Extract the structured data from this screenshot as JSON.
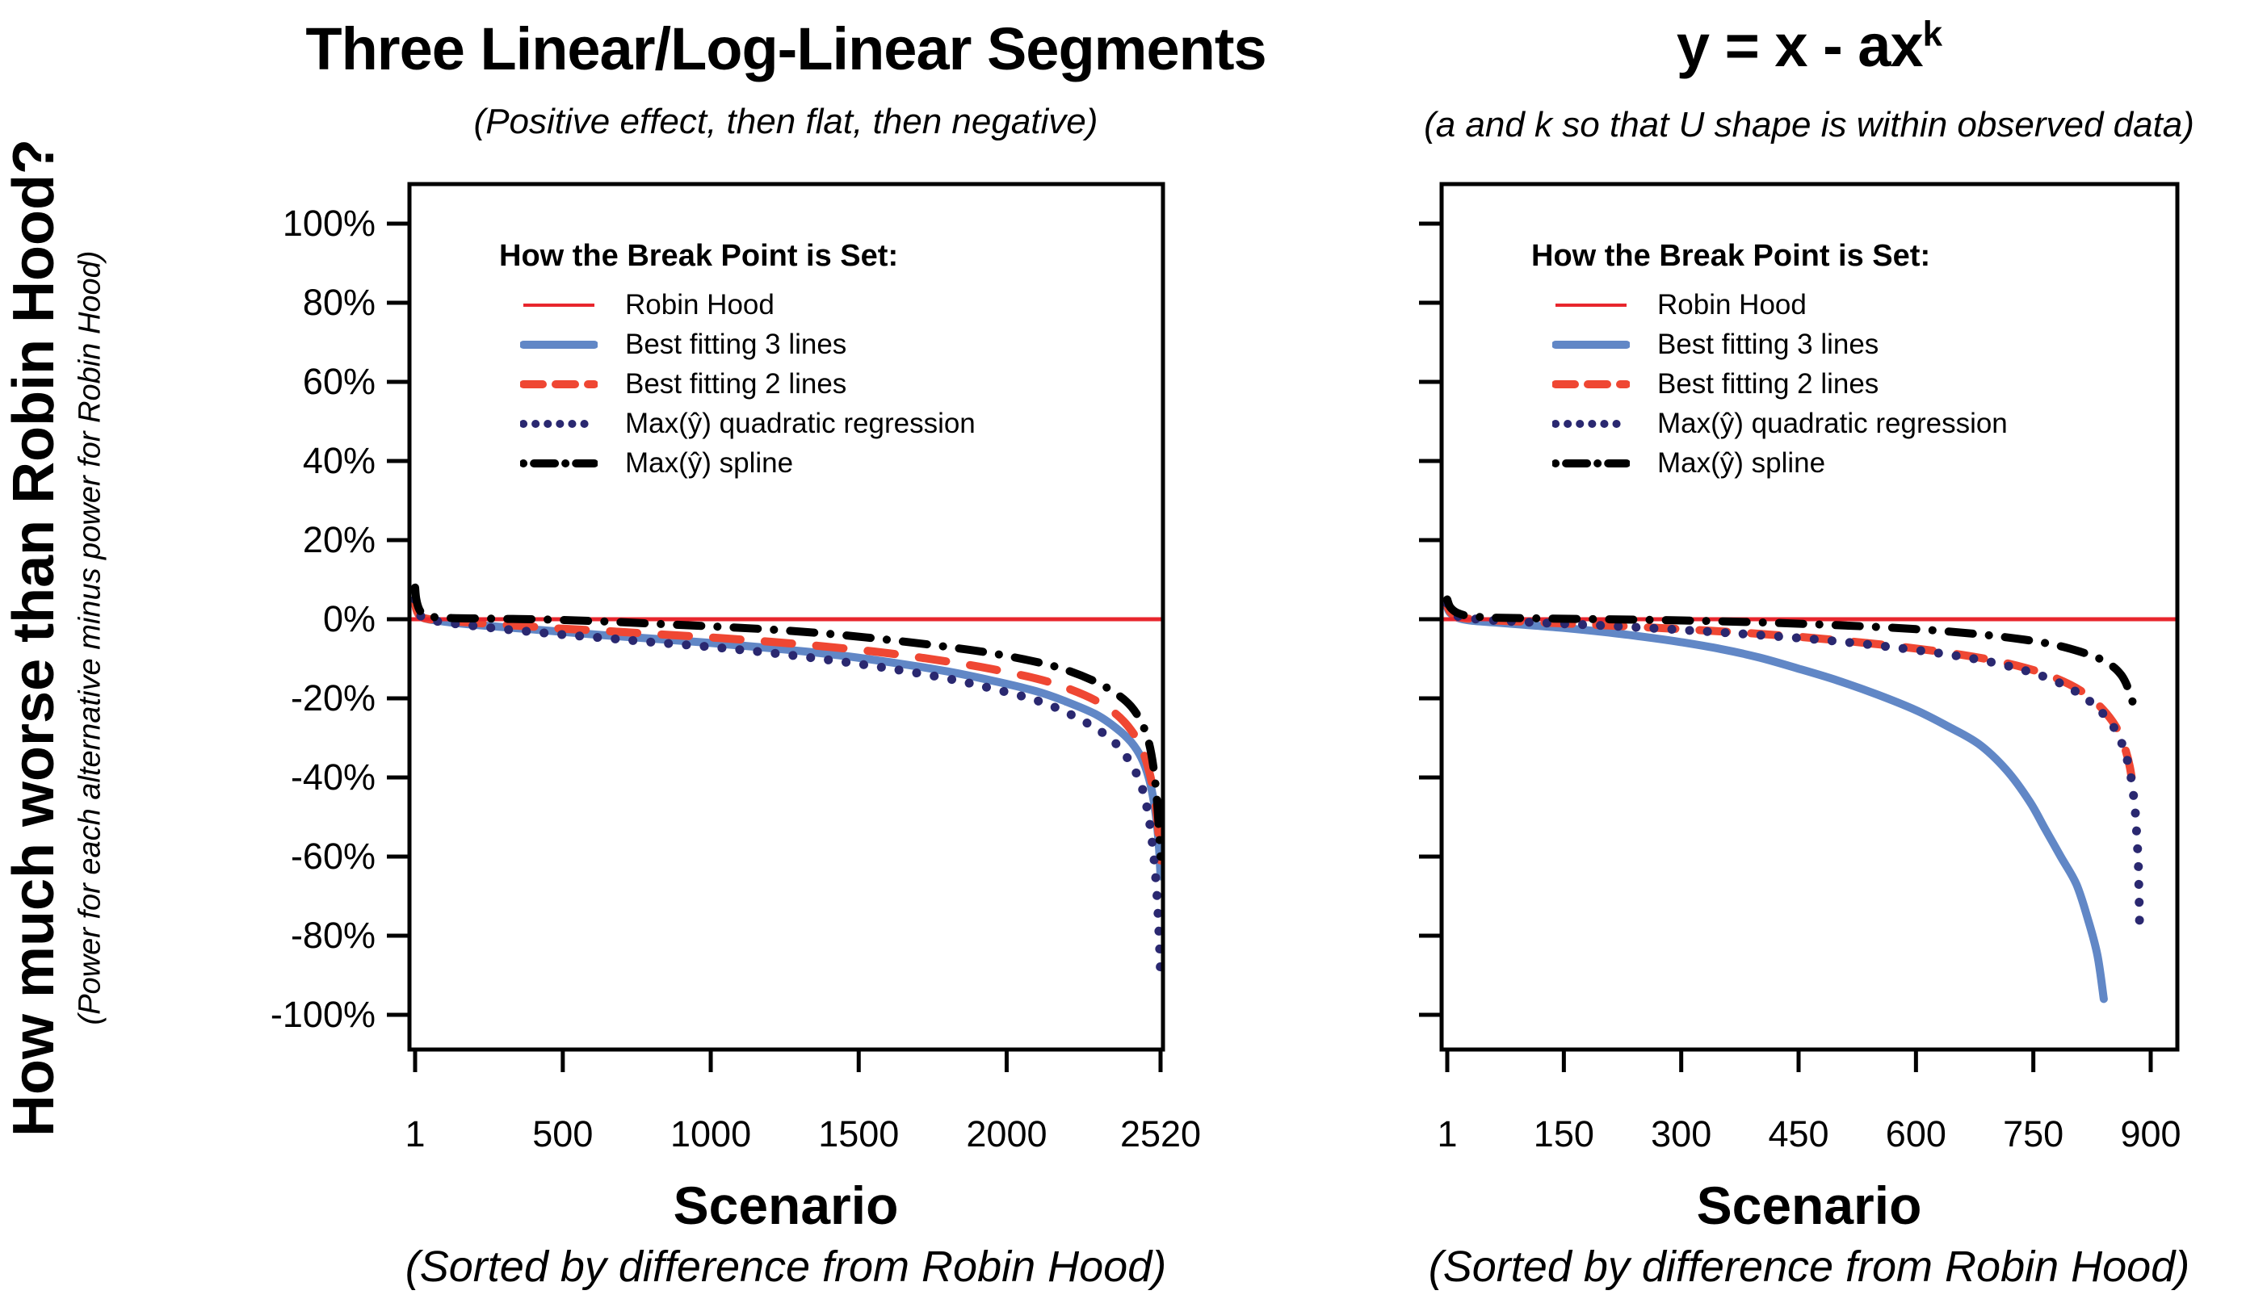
{
  "colors": {
    "robin_red": "#E8262D",
    "blue": "#6187C6",
    "orange": "#EF4733",
    "navy": "#2A2870",
    "black": "#000000",
    "axis": "#000000",
    "background": "#FFFFFF"
  },
  "left_axis": {
    "title": "How much worse than Robin Hood?",
    "subtitle": "(Power for each alternative minus power for Robin Hood)"
  },
  "legend": {
    "title": "How the Break Point is Set:",
    "entries": [
      {
        "label": "Robin Hood",
        "style": "robin"
      },
      {
        "label": "Best fitting 3 lines",
        "style": "blue"
      },
      {
        "label": "Best fitting 2 lines",
        "style": "orange"
      },
      {
        "label": "Max(ŷ) quadratic regression",
        "style": "navy"
      },
      {
        "label": "Max(ŷ) spline",
        "style": "black"
      }
    ]
  },
  "panels": [
    {
      "title": "Three Linear/Log-Linear Segments",
      "title_sup": "",
      "subtitle": "(Positive effect, then flat, then negative)",
      "xlabel": "Scenario",
      "xlabel_note": "(Sorted by difference from Robin Hood)"
    },
    {
      "title": "y = x -  ax",
      "title_sup": "k",
      "subtitle": "(a and k so that U shape is within observed data)",
      "xlabel": "Scenario",
      "xlabel_note": "(Sorted by difference from Robin Hood)"
    }
  ],
  "chart_data": [
    {
      "type": "line",
      "title": "Three Linear/Log-Linear Segments",
      "subtitle": "(Positive effect, then flat, then negative)",
      "xlabel": "Scenario (Sorted by difference from Robin Hood)",
      "ylabel": "Power for each alternative minus power for Robin Hood (%)",
      "x_ticks": [
        1,
        500,
        1000,
        1500,
        2000,
        2520
      ],
      "x_tick_labels": [
        "1",
        "500",
        "1000",
        "1500",
        "2000",
        "2520"
      ],
      "y_ticks": [
        100,
        80,
        60,
        40,
        20,
        0,
        -20,
        -40,
        -60,
        -80,
        -100
      ],
      "y_tick_labels": [
        "100%",
        "80%",
        "60%",
        "40%",
        "20%",
        "0%",
        "-20%",
        "-40%",
        "-60%",
        "-80%",
        "-100%"
      ],
      "ylim": [
        -108,
        110
      ],
      "show_y_tick_labels": true,
      "grid": false,
      "legend_position": "top-left-inside",
      "series": [
        {
          "name": "Robin Hood",
          "style": "robin",
          "reference_line_y": 0,
          "points": []
        },
        {
          "name": "Best fitting 3 lines",
          "style": "blue",
          "points": [
            [
              1,
              4
            ],
            [
              5,
              2.5
            ],
            [
              15,
              1
            ],
            [
              30,
              0.3
            ],
            [
              60,
              -0.2
            ],
            [
              120,
              -0.8
            ],
            [
              200,
              -1.4
            ],
            [
              300,
              -2
            ],
            [
              400,
              -2.6
            ],
            [
              500,
              -3.2
            ],
            [
              650,
              -4.1
            ],
            [
              800,
              -4.9
            ],
            [
              1000,
              -6
            ],
            [
              1200,
              -7.3
            ],
            [
              1400,
              -8.8
            ],
            [
              1600,
              -10.8
            ],
            [
              1800,
              -13.2
            ],
            [
              1950,
              -15.5
            ],
            [
              2100,
              -18.2
            ],
            [
              2200,
              -20.8
            ],
            [
              2300,
              -24
            ],
            [
              2370,
              -27.5
            ],
            [
              2420,
              -31
            ],
            [
              2455,
              -35
            ],
            [
              2480,
              -40
            ],
            [
              2497,
              -46
            ],
            [
              2508,
              -52
            ],
            [
              2515,
              -58
            ],
            [
              2520,
              -65
            ]
          ]
        },
        {
          "name": "Best fitting 2 lines",
          "style": "orange",
          "points": [
            [
              1,
              4.5
            ],
            [
              5,
              2.5
            ],
            [
              15,
              1
            ],
            [
              30,
              0.3
            ],
            [
              60,
              -0.1
            ],
            [
              120,
              -0.5
            ],
            [
              200,
              -0.9
            ],
            [
              300,
              -1.4
            ],
            [
              400,
              -1.9
            ],
            [
              500,
              -2.4
            ],
            [
              650,
              -3
            ],
            [
              800,
              -3.7
            ],
            [
              1000,
              -4.6
            ],
            [
              1200,
              -5.7
            ],
            [
              1400,
              -7
            ],
            [
              1600,
              -8.6
            ],
            [
              1800,
              -10.7
            ],
            [
              1950,
              -12.6
            ],
            [
              2100,
              -15
            ],
            [
              2200,
              -17.3
            ],
            [
              2300,
              -20.5
            ],
            [
              2370,
              -24
            ],
            [
              2420,
              -28
            ],
            [
              2455,
              -32.5
            ],
            [
              2480,
              -38
            ],
            [
              2497,
              -44
            ],
            [
              2508,
              -50
            ],
            [
              2515,
              -56
            ],
            [
              2520,
              -61
            ]
          ]
        },
        {
          "name": "Max(ŷ) quadratic regression",
          "style": "navy",
          "points": [
            [
              1,
              5
            ],
            [
              5,
              3
            ],
            [
              15,
              1.2
            ],
            [
              30,
              0.4
            ],
            [
              60,
              -0.3
            ],
            [
              120,
              -1
            ],
            [
              200,
              -1.7
            ],
            [
              300,
              -2.5
            ],
            [
              400,
              -3.2
            ],
            [
              500,
              -3.9
            ],
            [
              650,
              -4.8
            ],
            [
              800,
              -5.8
            ],
            [
              1000,
              -7
            ],
            [
              1200,
              -8.5
            ],
            [
              1400,
              -10.3
            ],
            [
              1600,
              -12.4
            ],
            [
              1800,
              -15
            ],
            [
              1950,
              -17.5
            ],
            [
              2100,
              -20.5
            ],
            [
              2200,
              -23.5
            ],
            [
              2300,
              -27.5
            ],
            [
              2370,
              -31.5
            ],
            [
              2420,
              -36.5
            ],
            [
              2455,
              -42
            ],
            [
              2480,
              -50
            ],
            [
              2497,
              -60
            ],
            [
              2508,
              -70
            ],
            [
              2515,
              -80
            ],
            [
              2520,
              -90
            ]
          ]
        },
        {
          "name": "Max(ŷ) spline",
          "style": "black",
          "points": [
            [
              1,
              8
            ],
            [
              5,
              5
            ],
            [
              15,
              2.5
            ],
            [
              30,
              1.2
            ],
            [
              60,
              0.6
            ],
            [
              120,
              0.3
            ],
            [
              200,
              0.2
            ],
            [
              300,
              0.1
            ],
            [
              400,
              0
            ],
            [
              500,
              -0.2
            ],
            [
              650,
              -0.6
            ],
            [
              800,
              -1.1
            ],
            [
              1000,
              -1.8
            ],
            [
              1200,
              -2.6
            ],
            [
              1400,
              -3.7
            ],
            [
              1600,
              -5.2
            ],
            [
              1800,
              -7
            ],
            [
              1950,
              -8.6
            ],
            [
              2100,
              -10.8
            ],
            [
              2200,
              -12.8
            ],
            [
              2300,
              -15.8
            ],
            [
              2370,
              -18.8
            ],
            [
              2420,
              -22
            ],
            [
              2455,
              -26
            ],
            [
              2480,
              -31
            ],
            [
              2497,
              -38
            ],
            [
              2508,
              -46
            ],
            [
              2515,
              -54
            ],
            [
              2520,
              -60
            ]
          ]
        }
      ]
    },
    {
      "type": "line",
      "title": "y = x - ax^k",
      "subtitle": "(a and k so that U shape is within observed data)",
      "xlabel": "Scenario (Sorted by difference from Robin Hood)",
      "ylabel": "Power for each alternative minus power for Robin Hood (%)",
      "x_ticks": [
        1,
        150,
        300,
        450,
        600,
        750,
        900
      ],
      "x_tick_labels": [
        "1",
        "150",
        "300",
        "450",
        "600",
        "750",
        "900"
      ],
      "y_ticks": [
        100,
        80,
        60,
        40,
        20,
        0,
        -20,
        -40,
        -60,
        -80,
        -100
      ],
      "y_tick_labels": [
        "100%",
        "80%",
        "60%",
        "40%",
        "20%",
        "0%",
        "-20%",
        "-40%",
        "-60%",
        "-80%",
        "-100%"
      ],
      "ylim": [
        -108,
        110
      ],
      "show_y_tick_labels": false,
      "grid": false,
      "legend_position": "top-left-inside",
      "series": [
        {
          "name": "Robin Hood",
          "style": "robin",
          "reference_line_y": 0,
          "points": []
        },
        {
          "name": "Best fitting 3 lines",
          "style": "blue",
          "points": [
            [
              1,
              3
            ],
            [
              5,
              1.5
            ],
            [
              15,
              0.3
            ],
            [
              30,
              -0.3
            ],
            [
              60,
              -0.8
            ],
            [
              100,
              -1.4
            ],
            [
              150,
              -2.2
            ],
            [
              200,
              -3.2
            ],
            [
              250,
              -4.4
            ],
            [
              300,
              -5.8
            ],
            [
              350,
              -7.5
            ],
            [
              400,
              -9.7
            ],
            [
              450,
              -12.5
            ],
            [
              500,
              -15.5
            ],
            [
              550,
              -19
            ],
            [
              600,
              -23
            ],
            [
              640,
              -27
            ],
            [
              680,
              -31.5
            ],
            [
              715,
              -38
            ],
            [
              745,
              -46
            ],
            [
              765,
              -53
            ],
            [
              785,
              -60
            ],
            [
              805,
              -67
            ],
            [
              820,
              -76
            ],
            [
              832,
              -85
            ],
            [
              840,
              -96
            ]
          ]
        },
        {
          "name": "Best fitting 2 lines",
          "style": "orange",
          "points": [
            [
              1,
              3.5
            ],
            [
              5,
              1.8
            ],
            [
              15,
              0.6
            ],
            [
              30,
              0.1
            ],
            [
              60,
              -0.3
            ],
            [
              120,
              -0.8
            ],
            [
              200,
              -1.5
            ],
            [
              300,
              -2.5
            ],
            [
              400,
              -3.7
            ],
            [
              500,
              -5.3
            ],
            [
              600,
              -7.4
            ],
            [
              680,
              -9.7
            ],
            [
              740,
              -12.3
            ],
            [
              780,
              -15
            ],
            [
              810,
              -18
            ],
            [
              835,
              -22
            ],
            [
              855,
              -27
            ],
            [
              866,
              -32
            ],
            [
              873,
              -37
            ],
            [
              877,
              -42
            ],
            [
              879,
              -46
            ]
          ]
        },
        {
          "name": "Max(ŷ) quadratic regression",
          "style": "navy",
          "points": [
            [
              1,
              4
            ],
            [
              5,
              2
            ],
            [
              15,
              0.7
            ],
            [
              30,
              0.2
            ],
            [
              60,
              -0.3
            ],
            [
              120,
              -0.9
            ],
            [
              200,
              -1.6
            ],
            [
              300,
              -2.7
            ],
            [
              400,
              -4
            ],
            [
              500,
              -5.6
            ],
            [
              600,
              -7.8
            ],
            [
              680,
              -10.2
            ],
            [
              740,
              -13
            ],
            [
              780,
              -15.8
            ],
            [
              810,
              -19
            ],
            [
              835,
              -23
            ],
            [
              855,
              -28
            ],
            [
              866,
              -33
            ],
            [
              873,
              -38
            ],
            [
              877,
              -43
            ],
            [
              880,
              -48
            ],
            [
              882,
              -54
            ],
            [
              884,
              -61
            ],
            [
              885,
              -69
            ],
            [
              886,
              -80
            ]
          ]
        },
        {
          "name": "Max(ŷ) spline",
          "style": "black",
          "points": [
            [
              1,
              5
            ],
            [
              5,
              3
            ],
            [
              15,
              1.5
            ],
            [
              30,
              0.8
            ],
            [
              60,
              0.4
            ],
            [
              120,
              0.2
            ],
            [
              200,
              0
            ],
            [
              300,
              -0.3
            ],
            [
              400,
              -0.8
            ],
            [
              500,
              -1.5
            ],
            [
              600,
              -2.5
            ],
            [
              680,
              -3.8
            ],
            [
              740,
              -5.2
            ],
            [
              780,
              -6.6
            ],
            [
              810,
              -8.2
            ],
            [
              835,
              -10
            ],
            [
              852,
              -12
            ],
            [
              862,
              -14
            ],
            [
              868,
              -16
            ],
            [
              872,
              -18
            ],
            [
              875,
              -19.5
            ],
            [
              877,
              -21
            ]
          ]
        }
      ]
    }
  ]
}
